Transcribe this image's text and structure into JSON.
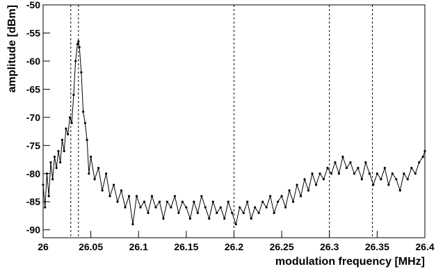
{
  "chart_data": {
    "type": "line",
    "xlabel": "modulation frequency [MHz]",
    "ylabel": "amplitude [dBm]",
    "color": "#000000",
    "xlim": [
      26,
      26.4
    ],
    "ylim": [
      -91.4,
      -50
    ],
    "xticks": [
      26,
      26.05,
      26.1,
      26.15,
      26.2,
      26.25,
      26.3,
      26.35,
      26.4
    ],
    "yticks": [
      -90,
      -85,
      -80,
      -75,
      -70,
      -65,
      -60,
      -55,
      -50
    ],
    "vlines": [
      26.029,
      26.037,
      26.2,
      26.3,
      26.345
    ],
    "x": [
      26.0,
      26.002,
      26.004,
      26.006,
      26.008,
      26.01,
      26.012,
      26.014,
      26.016,
      26.018,
      26.02,
      26.022,
      26.024,
      26.026,
      26.028,
      26.03,
      26.032,
      26.034,
      26.036,
      26.037,
      26.038,
      26.04,
      26.042,
      26.044,
      26.046,
      26.048,
      26.05,
      26.054,
      26.058,
      26.062,
      26.066,
      26.07,
      26.074,
      26.078,
      26.082,
      26.086,
      26.09,
      26.094,
      26.098,
      26.102,
      26.106,
      26.11,
      26.114,
      26.118,
      26.122,
      26.126,
      26.13,
      26.134,
      26.138,
      26.142,
      26.146,
      26.15,
      26.154,
      26.158,
      26.162,
      26.166,
      26.17,
      26.174,
      26.178,
      26.182,
      26.186,
      26.19,
      26.194,
      26.198,
      26.202,
      26.206,
      26.21,
      26.214,
      26.218,
      26.222,
      26.226,
      26.23,
      26.234,
      26.238,
      26.242,
      26.246,
      26.25,
      26.254,
      26.258,
      26.262,
      26.266,
      26.27,
      26.274,
      26.278,
      26.282,
      26.286,
      26.29,
      26.294,
      26.298,
      26.302,
      26.306,
      26.31,
      26.314,
      26.318,
      26.322,
      26.326,
      26.33,
      26.334,
      26.338,
      26.342,
      26.346,
      26.35,
      26.354,
      26.358,
      26.362,
      26.366,
      26.37,
      26.374,
      26.378,
      26.382,
      26.386,
      26.39,
      26.394,
      26.398,
      26.4
    ],
    "values": [
      -82,
      -86,
      -80,
      -84,
      -78,
      -81,
      -77,
      -79,
      -76,
      -78,
      -74,
      -76,
      -72,
      -73,
      -70,
      -71,
      -66,
      -60,
      -57,
      -56.5,
      -57.5,
      -62,
      -69,
      -71,
      -74,
      -80,
      -77,
      -81,
      -79,
      -83,
      -80,
      -84,
      -82,
      -85,
      -83,
      -86,
      -84,
      -89,
      -84,
      -86,
      -85,
      -87,
      -84,
      -86,
      -85,
      -88,
      -85,
      -86,
      -84,
      -87,
      -85,
      -86,
      -88,
      -85,
      -87,
      -84,
      -86,
      -88,
      -85,
      -87,
      -86,
      -88,
      -85,
      -87,
      -89,
      -86,
      -87,
      -85,
      -88,
      -86,
      -87,
      -85,
      -86,
      -84,
      -87,
      -85,
      -84,
      -86,
      -83,
      -85,
      -82,
      -84,
      -81,
      -83,
      -80,
      -82,
      -80,
      -81,
      -79,
      -80,
      -78,
      -80,
      -77,
      -79,
      -78,
      -80,
      -79,
      -81,
      -78,
      -80,
      -82,
      -80,
      -81,
      -79,
      -82,
      -80,
      -81,
      -83,
      -80,
      -81,
      -79,
      -80,
      -78,
      -77,
      -76
    ]
  }
}
